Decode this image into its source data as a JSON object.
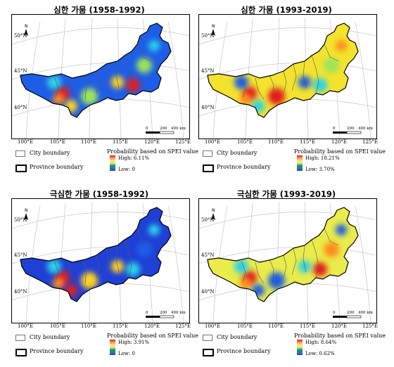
{
  "panels": [
    {
      "title": "심한 가뭄 (1958-1992)",
      "legend_high": "High: 6.11%",
      "legend_low": "Low: 0",
      "high_value": 6.11,
      "low_value": 0,
      "background": "#1e5de6",
      "hotspots": [
        {
          "c": "#e31a1c"
        },
        {
          "c": "#ff8c1a"
        },
        {
          "c": "#ffd21e"
        },
        {
          "c": "#29d2e6"
        },
        {
          "c": "#9be45a"
        },
        {
          "c": "#e31a1c"
        },
        {
          "c": "#ffd21e"
        },
        {
          "c": "#9be45a"
        },
        {
          "c": "#29d2e6"
        }
      ]
    },
    {
      "title": "심한 가뭄 (1993-2019)",
      "legend_high": "High: 18.21%",
      "legend_low": "Low: 3.70%",
      "high_value": 18.21,
      "low_value": 3.7,
      "background": "#f3e32e",
      "hotspots": [
        {
          "c": "#e31a1c"
        },
        {
          "c": "#ff8c1a"
        },
        {
          "c": "#29d2e6"
        },
        {
          "c": "#1e5de6"
        },
        {
          "c": "#e31a1c"
        },
        {
          "c": "#29d2e6"
        },
        {
          "c": "#1e5de6"
        },
        {
          "c": "#9be45a"
        },
        {
          "c": "#ff8c1a"
        }
      ]
    },
    {
      "title": "극심한 가뭄 (1958-1992)",
      "legend_high": "High: 3.91%",
      "legend_low": "Low: 0",
      "high_value": 3.91,
      "low_value": 0,
      "background": "#1f3fd6",
      "hotspots": [
        {
          "c": "#e31a1c"
        },
        {
          "c": "#ff8c1a"
        },
        {
          "c": "#e31a1c"
        },
        {
          "c": "#29d2e6"
        },
        {
          "c": "#ffd21e"
        },
        {
          "c": "#29d2e6"
        },
        {
          "c": "#ffd21e"
        },
        {
          "c": "#1e5de6"
        },
        {
          "c": "#29d2e6"
        }
      ]
    },
    {
      "title": "극심한 가뭄 (1993-2019)",
      "legend_high": "High: 8.64%",
      "legend_low": "Low: 0.62%",
      "high_value": 8.64,
      "low_value": 0.62,
      "background": "#e9ec4a",
      "hotspots": [
        {
          "c": "#e31a1c"
        },
        {
          "c": "#ff8c1a"
        },
        {
          "c": "#1e5de6"
        },
        {
          "c": "#29d2e6"
        },
        {
          "c": "#1e5de6"
        },
        {
          "c": "#e31a1c"
        },
        {
          "c": "#29d2e6"
        },
        {
          "c": "#ff8c1a"
        },
        {
          "c": "#1e5de6"
        }
      ]
    }
  ],
  "axis": {
    "lon_labels": [
      "100°E",
      "105°E",
      "110°E",
      "115°E",
      "120°E",
      "125°E"
    ],
    "lat_labels": [
      "50°N",
      "45°N",
      "40°N"
    ]
  },
  "scale_bar": {
    "labels": [
      "0",
      "200",
      "400 km"
    ]
  },
  "north_arrow": {
    "label": "N"
  },
  "legend": {
    "city_boundary": "City boundary",
    "province_boundary": "Province boundary",
    "probability_title": "Probability based on SPEI value"
  },
  "colors": {
    "high": "#e31a1c",
    "mid": "#ffd21e",
    "low": "#2b3cc4"
  }
}
